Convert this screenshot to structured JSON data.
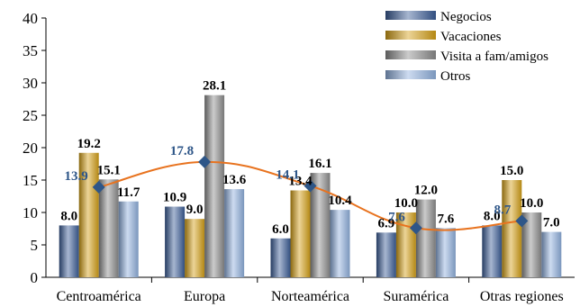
{
  "chart_data": {
    "type": "bar",
    "categories": [
      "Centroamérica",
      "Europa",
      "Norteamérica",
      "Suramérica",
      "Otras regiones"
    ],
    "series": [
      {
        "name": "Negocios",
        "values": [
          8.0,
          10.9,
          6.0,
          6.9,
          8.0
        ],
        "color": "#3b5d97"
      },
      {
        "name": "Vacaciones",
        "values": [
          19.2,
          9.0,
          13.4,
          10.0,
          15.0
        ],
        "color": "#d4a017"
      },
      {
        "name": "Visita a fam/amigos",
        "values": [
          15.1,
          28.1,
          16.1,
          12.0,
          10.0
        ],
        "color": "#8c8c8c"
      },
      {
        "name": "Otros",
        "values": [
          11.7,
          13.6,
          10.4,
          7.6,
          7.0
        ],
        "color": "#8fb0dd"
      }
    ],
    "line": {
      "values": [
        13.9,
        17.8,
        14.1,
        7.6,
        8.7
      ],
      "line_color": "#e8731f",
      "marker_color": "#2e5688",
      "label_color": "#2e5688"
    },
    "ylim": [
      0,
      40
    ],
    "yticks": [
      0,
      5,
      10,
      15,
      20,
      25,
      30,
      35,
      40
    ],
    "legend_position": "top-right",
    "grid": false,
    "xlabel": "",
    "ylabel": ""
  }
}
